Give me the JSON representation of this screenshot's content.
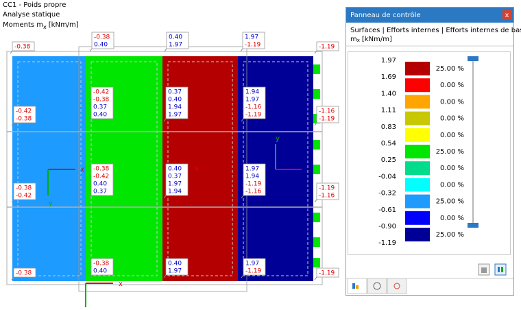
{
  "header": {
    "load_case": "CC1 - Poids propre",
    "analysis": "Analyse statique",
    "quantity": {
      "text": "Moments m",
      "subscript": "x",
      "unit": "[kNm/m]"
    }
  },
  "diagram": {
    "labels": [
      [
        "-0.38"
      ],
      [
        "-0.38",
        "0.40"
      ],
      [
        "0.40",
        "1.97"
      ],
      [
        "1.97",
        "-1.19"
      ],
      [
        "-1.19"
      ],
      [
        "-0.42",
        "-0.38",
        "0.37",
        "0.40"
      ],
      [
        "0.37",
        "0.40",
        "1.94",
        "1.97"
      ],
      [
        "1.94",
        "1.97",
        "-1.16",
        "-1.19"
      ],
      [
        "-0.42",
        "-0.38"
      ],
      [
        "-1.16",
        "-1.19"
      ],
      [
        "-0.38",
        "-0.42",
        "0.40",
        "0.37"
      ],
      [
        "0.40",
        "0.37",
        "1.97",
        "1.94"
      ],
      [
        "1.97",
        "1.94",
        "-1.19",
        "-1.16"
      ],
      [
        "-0.38",
        "-0.42"
      ],
      [
        "-1.19",
        "-1.16"
      ],
      [
        "-0.38"
      ],
      [
        "-0.38",
        "0.40"
      ],
      [
        "0.40",
        "1.97"
      ],
      [
        "1.97",
        "-1.19"
      ],
      [
        "-1.19"
      ]
    ],
    "axis_letters": [
      "x",
      "y",
      "x",
      "y",
      "x"
    ]
  },
  "panel": {
    "title": "Panneau de contrôle",
    "close": "x",
    "path": "Surfaces | Efforts internes | Efforts internes de base",
    "unit": {
      "text": "m",
      "subscript": "x",
      "unit": "[kNm/m]"
    },
    "legend": {
      "values": [
        "1.97",
        "1.69",
        "1.40",
        "1.11",
        "0.83",
        "0.54",
        "0.25",
        "-0.04",
        "-0.32",
        "-0.61",
        "-0.90",
        "-1.19"
      ],
      "colors": [
        "#b40000",
        "#ff0000",
        "#ffa500",
        "#c8c800",
        "#ffff00",
        "#00e600",
        "#00dc8c",
        "#00ffff",
        "#1e9bff",
        "#0000ff",
        "#000096"
      ],
      "percentages": [
        "25.00 %",
        "0.00 %",
        "0.00 %",
        "0.00 %",
        "0.00 %",
        "25.00 %",
        "0.00 %",
        "0.00 %",
        "25.00 %",
        "0.00 %",
        "25.00 %"
      ]
    }
  }
}
